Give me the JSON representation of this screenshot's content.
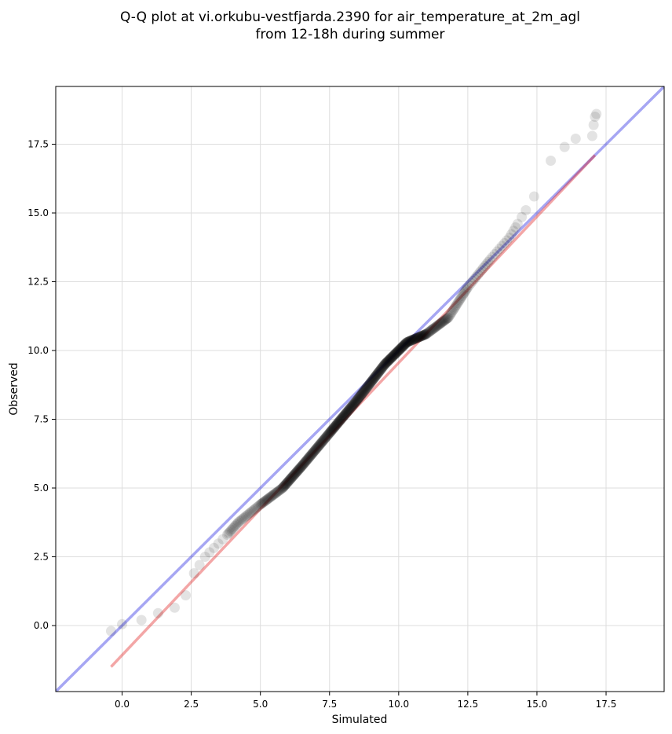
{
  "chart_data": {
    "type": "scatter",
    "title_lines": [
      "Q-Q plot at vi.orkubu-vestfjarda.2390 for air_temperature_at_2m_agl",
      "from 12-18h during summer"
    ],
    "xlabel": "Simulated",
    "ylabel": "Observed",
    "xlim": [
      -2.4,
      19.6
    ],
    "ylim": [
      -2.4,
      19.6
    ],
    "x_ticks": [
      0.0,
      2.5,
      5.0,
      7.5,
      10.0,
      12.5,
      15.0,
      17.5
    ],
    "y_ticks": [
      0.0,
      2.5,
      5.0,
      7.5,
      10.0,
      12.5,
      15.0,
      17.5
    ],
    "x_tick_labels": [
      "0.0",
      "2.5",
      "5.0",
      "7.5",
      "10.0",
      "12.5",
      "15.0",
      "17.5"
    ],
    "y_tick_labels": [
      "0.0",
      "2.5",
      "5.0",
      "7.5",
      "10.0",
      "12.5",
      "15.0",
      "17.5"
    ],
    "grid": true,
    "colors": {
      "points": "#000000",
      "identity_line": "#0000dd",
      "fit_line": "#dd0000",
      "grid": "#dddddd"
    },
    "identity_line": {
      "x": [
        -2.4,
        19.6
      ],
      "y": [
        -2.4,
        19.6
      ]
    },
    "fit_line": {
      "x": [
        -0.4,
        17.1
      ],
      "y": [
        -1.5,
        17.1
      ]
    },
    "quantile_knots": {
      "x": [
        -0.4,
        0.0,
        0.7,
        1.3,
        1.9,
        2.3,
        2.6,
        3.0,
        3.8,
        4.2,
        5.0,
        5.8,
        6.5,
        7.5,
        8.5,
        9.5,
        10.3,
        11.0,
        11.8,
        12.5,
        13.3,
        14.0,
        14.3,
        14.6,
        14.9,
        15.5,
        16.0,
        16.4,
        17.0,
        17.05,
        17.1,
        17.15
      ],
      "y": [
        -0.2,
        0.05,
        0.2,
        0.45,
        0.65,
        1.1,
        1.9,
        2.5,
        3.3,
        3.75,
        4.4,
        5.0,
        5.8,
        7.0,
        8.2,
        9.5,
        10.3,
        10.6,
        11.2,
        12.3,
        13.3,
        14.1,
        14.6,
        15.1,
        15.6,
        16.9,
        17.4,
        17.7,
        17.8,
        18.2,
        18.5,
        18.6
      ]
    },
    "n_points": 520
  }
}
